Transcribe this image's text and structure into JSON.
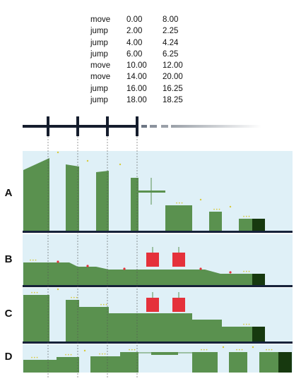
{
  "events": [
    {
      "action": "move",
      "start": "0.00",
      "end": "8.00"
    },
    {
      "action": "jump",
      "start": "2.00",
      "end": "2.25"
    },
    {
      "action": "jump",
      "start": "4.00",
      "end": "4.24"
    },
    {
      "action": "jump",
      "start": "6.00",
      "end": "6.25"
    },
    {
      "action": "move",
      "start": "10.00",
      "end": "12.00"
    },
    {
      "action": "move",
      "start": "14.00",
      "end": "20.00"
    },
    {
      "action": "jump",
      "start": "16.00",
      "end": "16.25"
    },
    {
      "action": "jump",
      "start": "18.00",
      "end": "18.25"
    }
  ],
  "rows": [
    {
      "label": "A"
    },
    {
      "label": "B"
    },
    {
      "label": "C"
    },
    {
      "label": "D"
    }
  ],
  "colors": {
    "panel_background": "#dff0f7",
    "terrain_green": "#5a914f",
    "goal_dark_green": "#17390f",
    "enemy_red": "#e5313b",
    "coin_yellow": "#d8c93a",
    "timeline_navy": "#151d2d",
    "timeline_fade": "#9aa0a8",
    "divider": "#16223a"
  }
}
